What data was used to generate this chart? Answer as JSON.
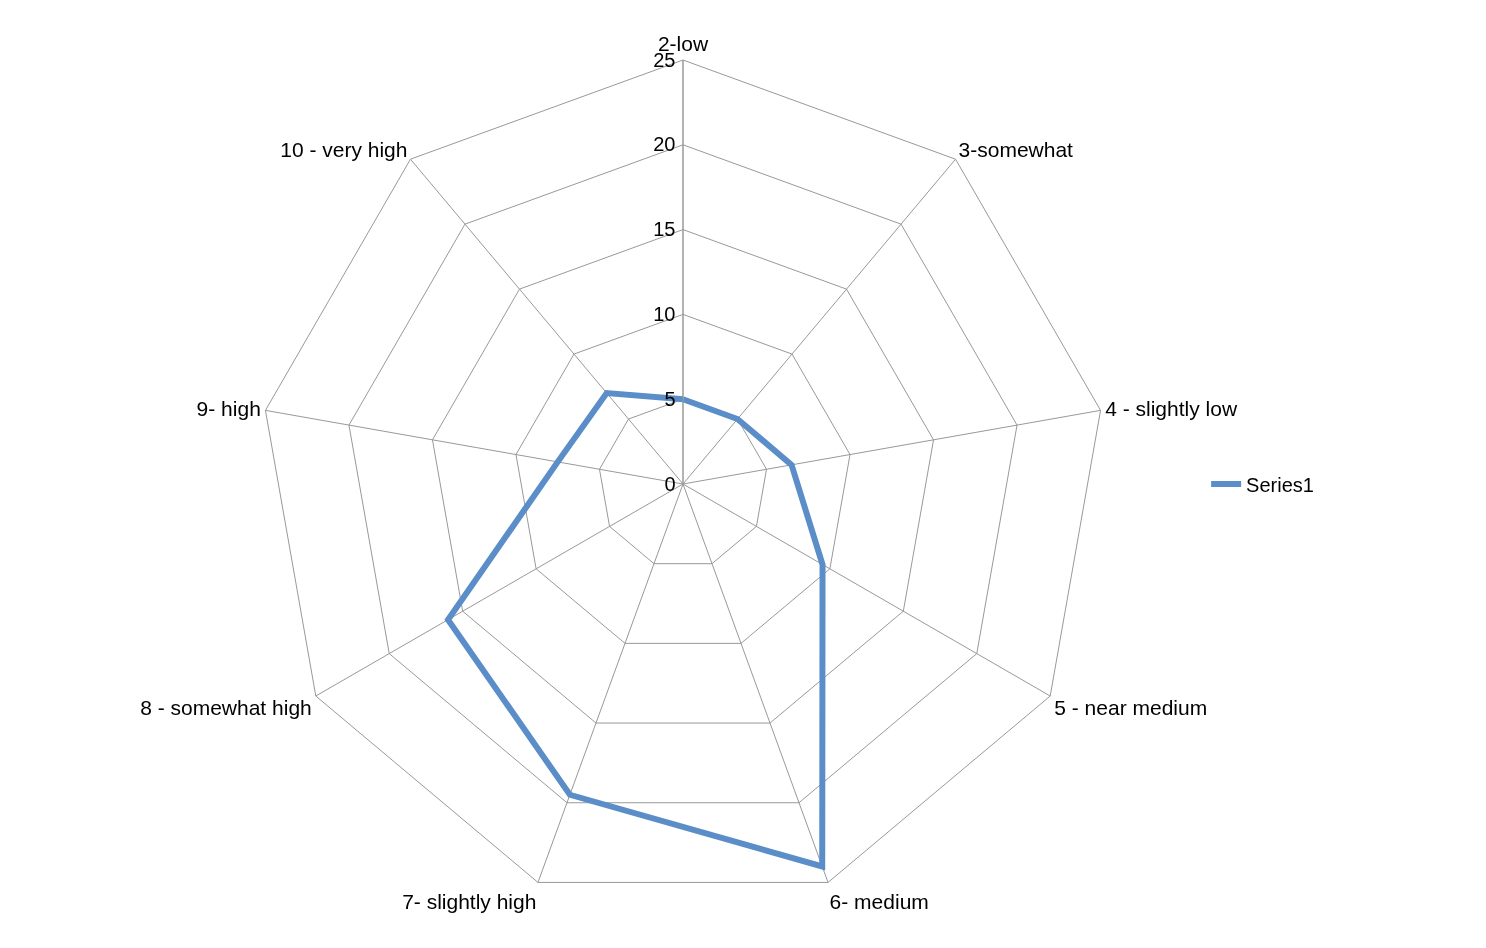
{
  "chart_data": {
    "type": "radar",
    "categories": [
      "2-low",
      "3-somewhat",
      "4 - slightly low",
      "5 - near medium",
      "6- medium",
      "7- slightly high",
      "8 - somewhat high",
      "9- high",
      "10 - very high"
    ],
    "series": [
      {
        "name": "Series1",
        "color": "#5b8ec8",
        "values": [
          5,
          5,
          6.5,
          9.5,
          24,
          19.5,
          16,
          7.5,
          7
        ]
      }
    ],
    "ylim": [
      0,
      25
    ],
    "yticks": [
      0,
      5,
      10,
      15,
      20,
      25
    ],
    "grid": true,
    "legend": "right",
    "marker": "none",
    "line_style": "solid"
  }
}
